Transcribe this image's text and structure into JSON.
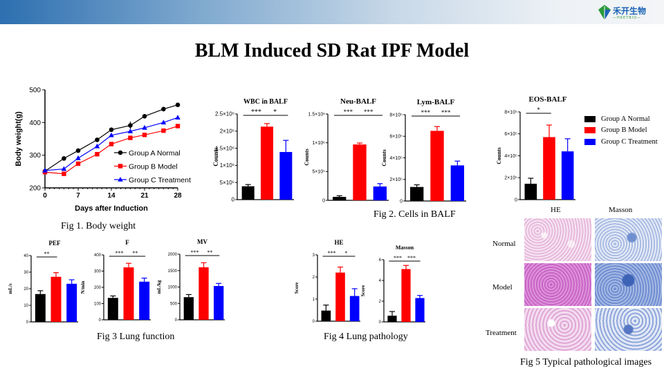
{
  "header": {
    "logo_cn": "禾开生物",
    "logo_en": "—HKEYBIO—"
  },
  "title": "BLM Induced SD Rat IPF Model",
  "captions": {
    "fig1": "Fig 1. Body weight",
    "fig2": "Fig 2. Cells in BALF",
    "fig3": "Fig 3 Lung function",
    "fig4": "Fig 4 Lung pathology",
    "fig5": "Fig 5 Typical pathological images"
  },
  "colors": {
    "A": "#000000",
    "B": "#ff0000",
    "C": "#0000ff"
  },
  "legend": [
    "Group A Normal",
    "Group B Model",
    "Group C Treatment"
  ],
  "images": {
    "columns": [
      "HE",
      "Masson"
    ],
    "rows": [
      "Normal",
      "Model",
      "Treatment"
    ]
  },
  "chart_data": [
    {
      "id": "bw",
      "type": "line",
      "xlabel": "Days after Induction",
      "ylabel": "Body weight(g)",
      "ylim": [
        200,
        500
      ],
      "yticks": [
        200,
        300,
        400,
        500
      ],
      "xlim": [
        0,
        28
      ],
      "xticks": [
        0,
        7,
        14,
        21,
        28
      ],
      "x": [
        0,
        4,
        7,
        11,
        14,
        18,
        21,
        25,
        28
      ],
      "series": [
        {
          "name": "Group A Normal",
          "marker": "circle",
          "values": [
            251,
            290,
            314,
            347,
            378,
            391,
            419,
            441,
            454
          ],
          "errors": [
            3,
            3,
            4,
            5,
            6,
            12,
            6,
            7,
            6
          ]
        },
        {
          "name": "Group B Model",
          "marker": "square",
          "values": [
            248,
            243,
            274,
            303,
            334,
            353,
            362,
            375,
            389
          ],
          "errors": [
            3,
            4,
            4,
            4,
            4,
            4,
            4,
            4,
            4
          ]
        },
        {
          "name": "Group C Treatment",
          "marker": "triangle",
          "values": [
            253,
            258,
            291,
            327,
            361,
            373,
            384,
            400,
            415
          ],
          "errors": [
            3,
            3,
            3,
            3,
            3,
            3,
            3,
            3,
            3
          ]
        }
      ]
    },
    {
      "id": "wbc",
      "type": "bar",
      "title": "WBC in BALF",
      "ylabel": "Counts",
      "ylim": [
        0,
        2500000
      ],
      "yticks": [
        0,
        500000,
        1000000,
        1500000,
        2000000,
        2500000
      ],
      "yticklabels": [
        "0",
        "5×10⁵",
        "1×10⁶",
        "1.5×10⁶",
        "2×10⁶",
        "2.5×10⁶"
      ],
      "categories": [
        "Group A Normal",
        "Group B Model",
        "Group C Treatment"
      ],
      "values": [
        390000,
        2130000,
        1390000
      ],
      "errors": [
        50000,
        90000,
        340000
      ],
      "significance": [
        {
          "from": 0,
          "to": 1,
          "label": "***"
        },
        {
          "from": 1,
          "to": 2,
          "label": "*"
        }
      ]
    },
    {
      "id": "neu",
      "type": "bar",
      "title": "Neu-BALF",
      "ylabel": "Counts",
      "ylim": [
        0,
        1500000
      ],
      "yticks": [
        0,
        500000,
        1000000,
        1500000
      ],
      "yticklabels": [
        "0",
        "5×10⁵",
        "1×10⁶",
        "1.5×10⁶"
      ],
      "categories": [
        "Group A Normal",
        "Group B Model",
        "Group C Treatment"
      ],
      "values": [
        60000,
        970000,
        240000
      ],
      "errors": [
        20000,
        25000,
        50000
      ],
      "significance": [
        {
          "from": 0,
          "to": 1,
          "label": "***"
        },
        {
          "from": 1,
          "to": 2,
          "label": "***"
        }
      ]
    },
    {
      "id": "lym",
      "type": "bar",
      "title": "Lym-BALF",
      "ylabel": "Counts",
      "ylim": [
        0,
        800000
      ],
      "yticks": [
        0,
        200000,
        400000,
        600000,
        800000
      ],
      "yticklabels": [
        "0",
        "2×10⁵",
        "4×10⁵",
        "6×10⁵",
        "8×10⁵"
      ],
      "categories": [
        "Group A Normal",
        "Group B Model",
        "Group C Treatment"
      ],
      "values": [
        130000,
        650000,
        330000
      ],
      "errors": [
        20000,
        40000,
        40000
      ],
      "significance": [
        {
          "from": 0,
          "to": 1,
          "label": "***"
        },
        {
          "from": 1,
          "to": 2,
          "label": "***"
        }
      ]
    },
    {
      "id": "eos",
      "type": "bar",
      "title": "EOS-BALF",
      "ylabel": "Counts",
      "ylim": [
        0,
        800000
      ],
      "yticks": [
        0,
        200000,
        400000,
        600000,
        800000
      ],
      "yticklabels": [
        "0",
        "2×10⁵",
        "4×10⁵",
        "6×10⁵",
        "8×10⁵"
      ],
      "categories": [
        "Group A Normal",
        "Group B Model",
        "Group C Treatment"
      ],
      "values": [
        145000,
        570000,
        440000
      ],
      "errors": [
        50000,
        110000,
        115000
      ],
      "significance": [
        {
          "from": 0,
          "to": 1,
          "label": "*"
        }
      ]
    },
    {
      "id": "pef",
      "type": "bar",
      "title": "PEF",
      "ylabel": "mL/s",
      "ylim": [
        0,
        40
      ],
      "yticks": [
        0,
        10,
        20,
        30,
        40
      ],
      "yticklabels": [
        "0",
        "10",
        "20",
        "30",
        "40"
      ],
      "categories": [
        "Group A Normal",
        "Group B Model",
        "Group C Treatment"
      ],
      "values": [
        16.8,
        27.2,
        23
      ],
      "errors": [
        2,
        2.5,
        2.4
      ],
      "significance": [
        {
          "from": 0,
          "to": 1,
          "label": "**"
        }
      ]
    },
    {
      "id": "f",
      "type": "bar",
      "title": "F",
      "ylabel": "N/min",
      "ylim": [
        0,
        400
      ],
      "yticks": [
        0,
        100,
        200,
        300,
        400
      ],
      "yticklabels": [
        "0",
        "100",
        "200",
        "300",
        "400"
      ],
      "categories": [
        "Group A Normal",
        "Group B Model",
        "Group C Treatment"
      ],
      "values": [
        135,
        323,
        235
      ],
      "errors": [
        12,
        25,
        22
      ],
      "significance": [
        {
          "from": 0,
          "to": 1,
          "label": "***"
        },
        {
          "from": 1,
          "to": 2,
          "label": "**"
        }
      ]
    },
    {
      "id": "mv",
      "type": "bar",
      "title": "MV",
      "ylabel": "mL/kg",
      "ylim": [
        0,
        2000
      ],
      "yticks": [
        0,
        500,
        1000,
        1500,
        2000
      ],
      "yticklabels": [
        "0",
        "500",
        "1000",
        "1500",
        "2000"
      ],
      "categories": [
        "Group A Normal",
        "Group B Model",
        "Group C Treatment"
      ],
      "values": [
        690,
        1600,
        1030
      ],
      "errors": [
        80,
        140,
        80
      ],
      "significance": [
        {
          "from": 0,
          "to": 1,
          "label": "***"
        },
        {
          "from": 1,
          "to": 2,
          "label": "**"
        }
      ]
    },
    {
      "id": "he",
      "type": "bar",
      "title": "HE",
      "ylabel": "Score",
      "ylim": [
        0,
        3
      ],
      "yticks": [
        0,
        1,
        2,
        3
      ],
      "yticklabels": [
        "0",
        "1",
        "2",
        "3"
      ],
      "categories": [
        "Group A Normal",
        "Group B Model",
        "Group C Treatment"
      ],
      "values": [
        0.48,
        2.2,
        1.14
      ],
      "errors": [
        0.25,
        0.25,
        0.33
      ],
      "significance": [
        {
          "from": 0,
          "to": 1,
          "label": "***"
        },
        {
          "from": 1,
          "to": 2,
          "label": "*"
        }
      ]
    },
    {
      "id": "masson",
      "type": "bar",
      "title": "Masson",
      "ylabel": "Score",
      "ylim": [
        0,
        6
      ],
      "yticks": [
        0,
        2,
        4,
        6
      ],
      "yticklabels": [
        "0",
        "2",
        "4",
        "6"
      ],
      "categories": [
        "Group A Normal",
        "Group B Model",
        "Group C Treatment"
      ],
      "values": [
        0.6,
        5.1,
        2.3
      ],
      "errors": [
        0.4,
        0.35,
        0.25
      ],
      "significance": [
        {
          "from": 0,
          "to": 1,
          "label": "***"
        },
        {
          "from": 1,
          "to": 2,
          "label": "***"
        }
      ]
    }
  ]
}
